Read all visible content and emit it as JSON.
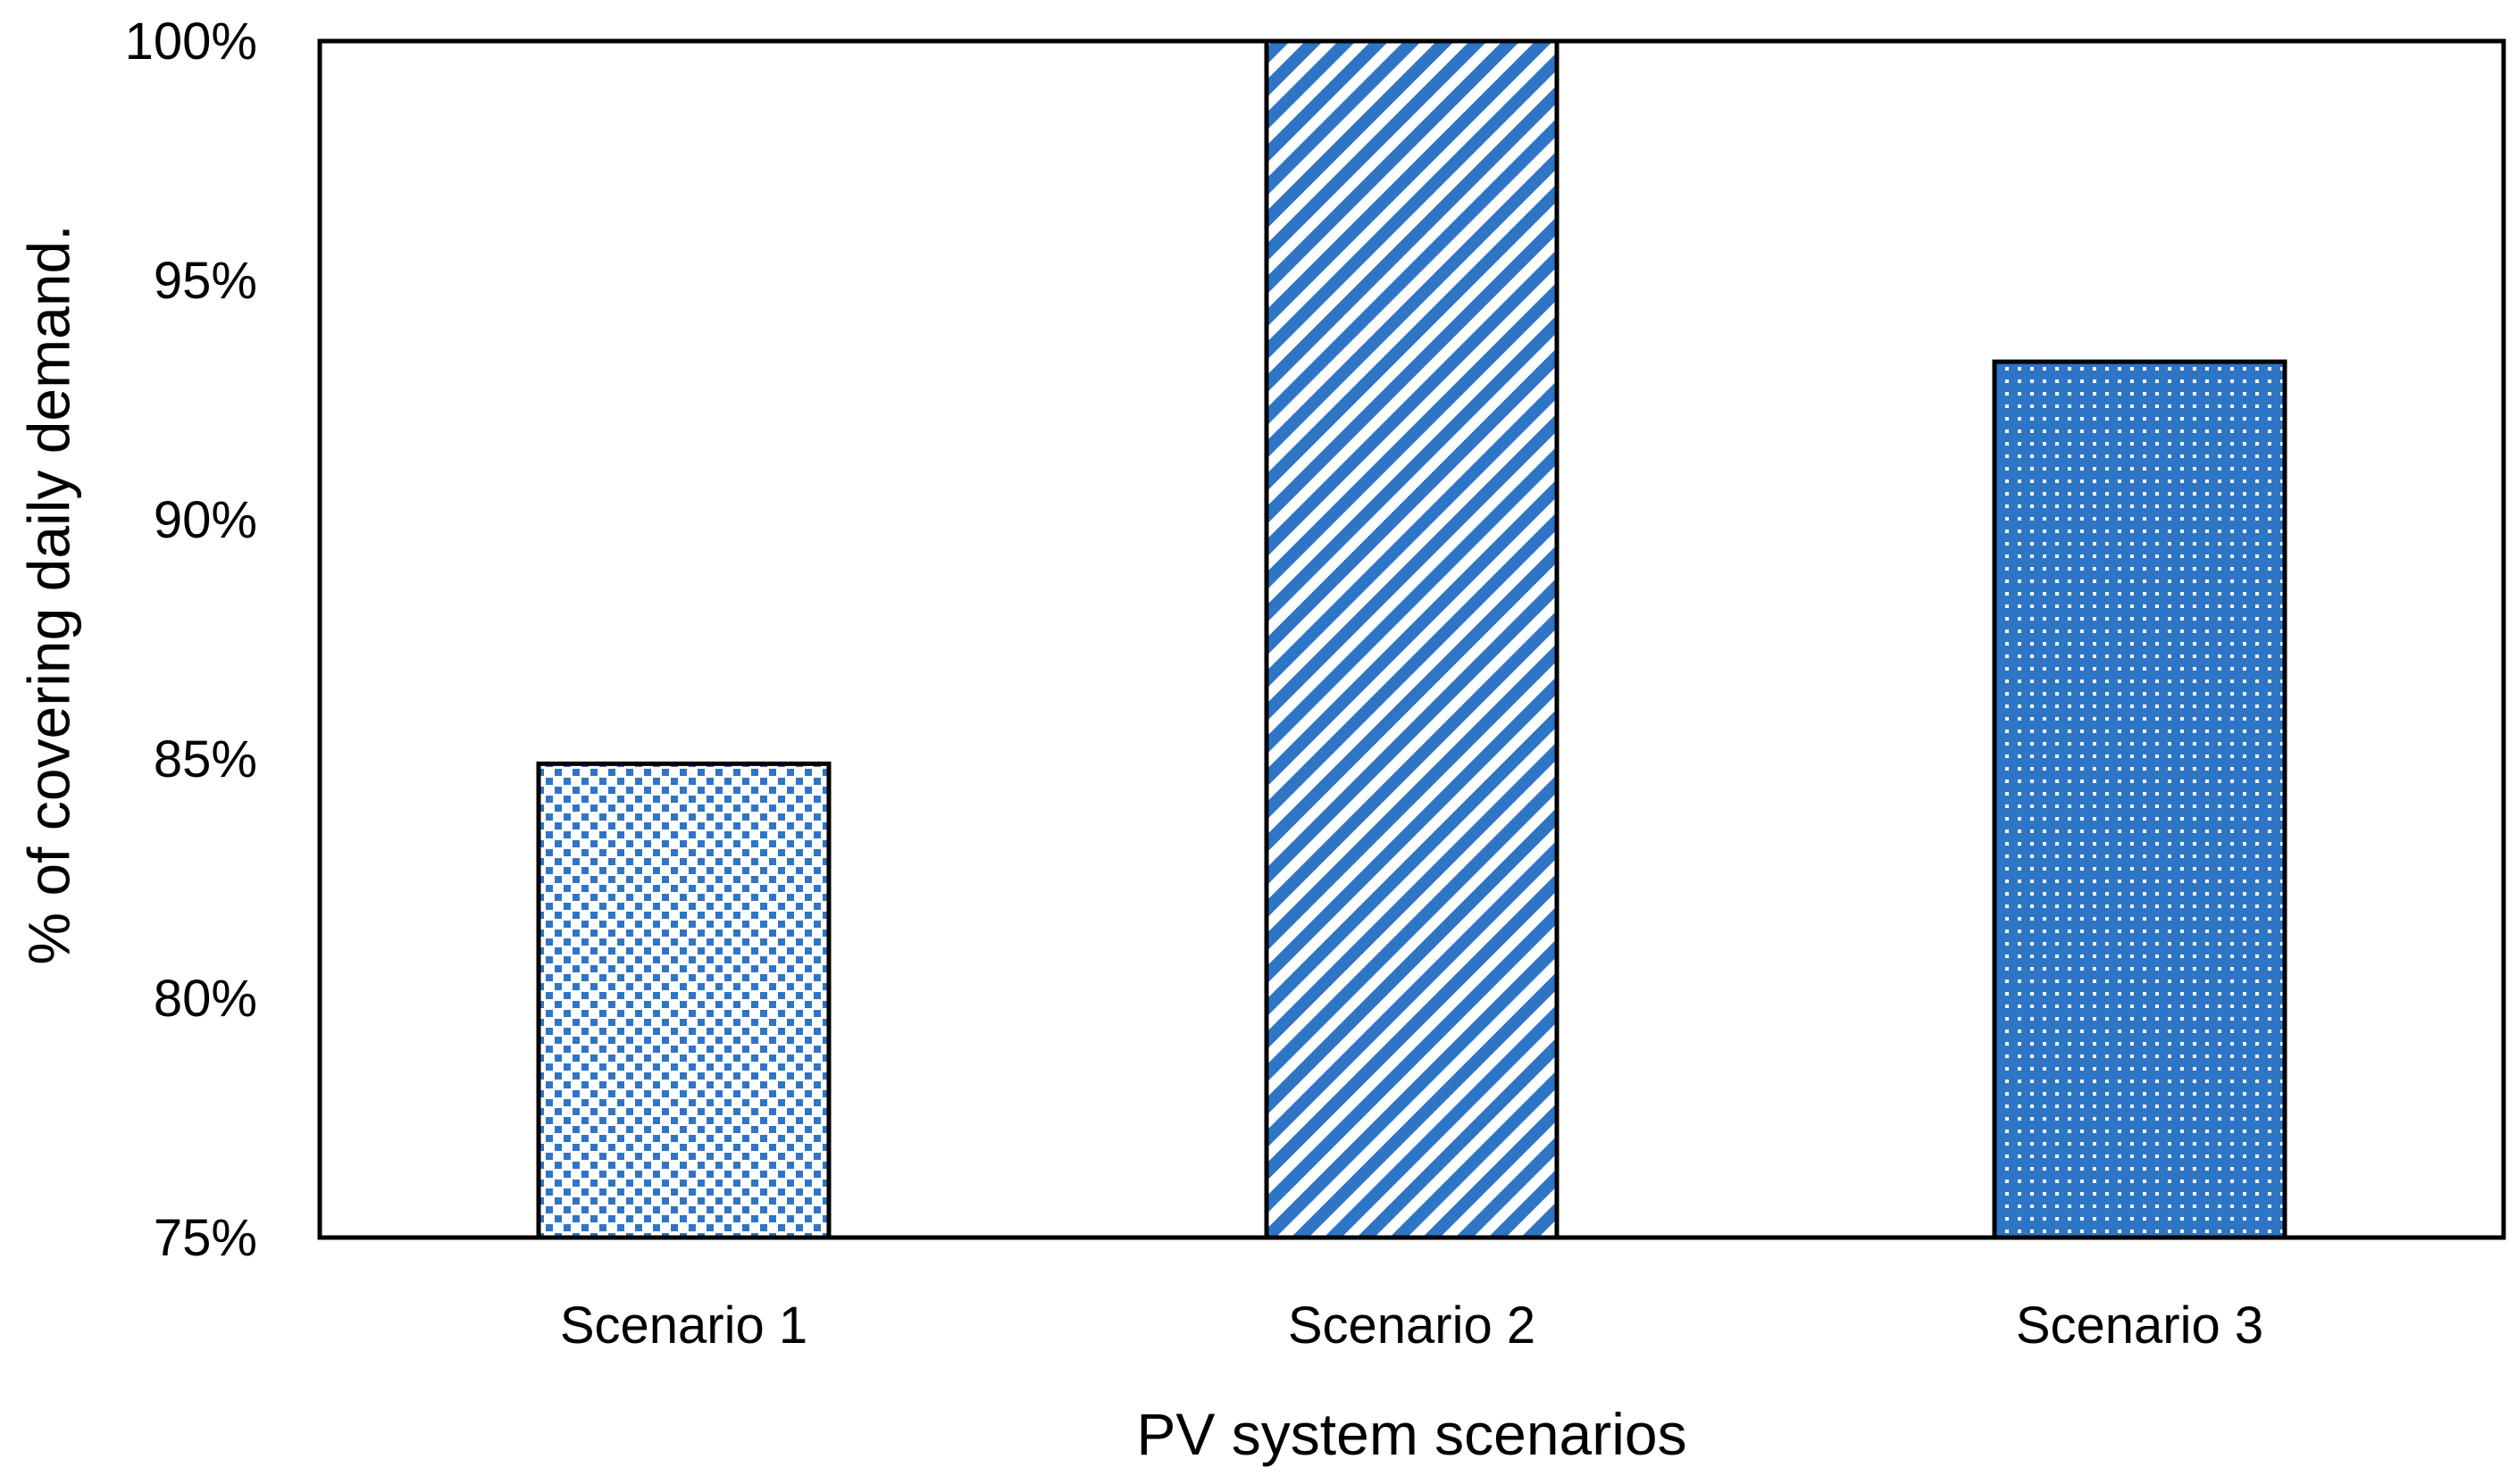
{
  "chart_data": {
    "type": "bar",
    "title": "",
    "xlabel": "PV system scenarios",
    "ylabel": "% of covering daily demand.",
    "categories": [
      "Scenario 1",
      "Scenario 2",
      "Scenario 3"
    ],
    "values": [
      84.9,
      100.0,
      93.3
    ],
    "ylim": [
      75,
      100
    ],
    "yticks": [
      75,
      80,
      85,
      90,
      95,
      100
    ],
    "ytick_labels": [
      "75%",
      "80%",
      "85%",
      "90%",
      "95%",
      "100%"
    ],
    "grid": false,
    "legend": "none",
    "bar_patterns": [
      "checker",
      "diagonal-stripes",
      "dots"
    ],
    "colors": {
      "bar_fill": "#2e75c6",
      "bar_outline": "#000000",
      "axis": "#000000",
      "background": "#ffffff"
    }
  }
}
